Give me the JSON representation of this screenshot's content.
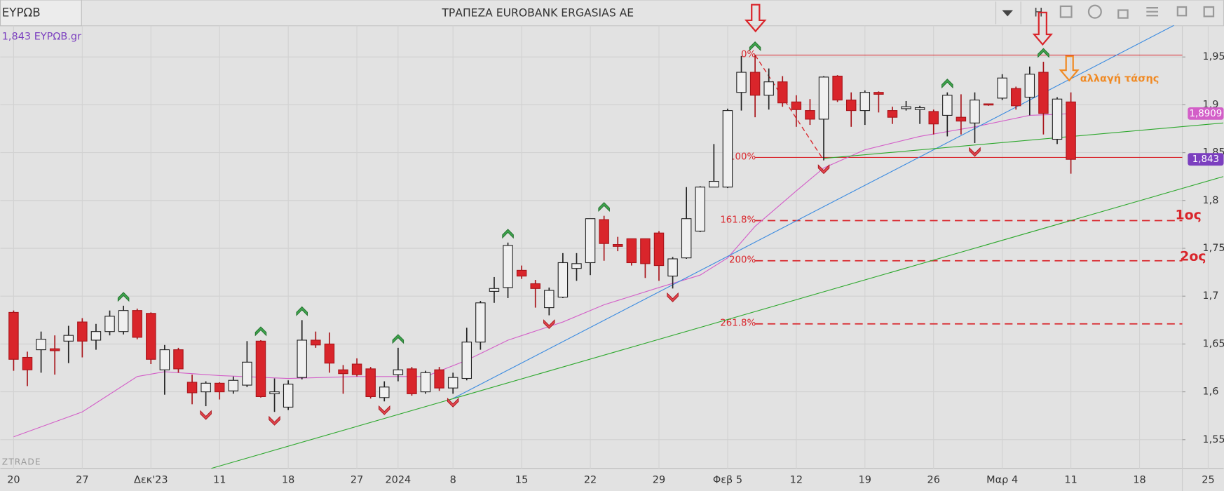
{
  "header": {
    "symbol": "ΕΥΡΩΒ",
    "title": "ΤΡΑΠΕΖΑ EUROBANK ERGASIAS AE",
    "menu": "H"
  },
  "chart_data": {
    "type": "candlestick",
    "legend": "1,843 ΕΥΡΩΒ.gr",
    "watermark": "ZTRADE",
    "grid": true,
    "up_color": "#f0f0f0",
    "down_color": "#d9252b",
    "categories": [
      "20",
      null,
      null,
      null,
      null,
      "27",
      null,
      null,
      null,
      null,
      "Δεκ'23",
      null,
      null,
      null,
      null,
      "11",
      null,
      null,
      null,
      null,
      "18",
      null,
      null,
      null,
      null,
      "27",
      null,
      null,
      "2024",
      null,
      null,
      null,
      "8",
      null,
      null,
      null,
      null,
      "15",
      null,
      null,
      null,
      null,
      "22",
      null,
      null,
      null,
      null,
      "29",
      null,
      null,
      null,
      null,
      "Φεβ 5",
      null,
      null,
      null,
      null,
      "12",
      null,
      null,
      null,
      null,
      "19",
      null,
      null,
      null,
      null,
      "26",
      null,
      null,
      null,
      null,
      "Μαρ 4",
      null,
      null,
      null,
      null,
      "11",
      null,
      null,
      null,
      null,
      "18",
      null,
      null,
      null,
      null,
      "25"
    ],
    "open": [
      1.683,
      1.636,
      1.644,
      1.645,
      1.653,
      1.673,
      1.654,
      1.663,
      1.663,
      1.685,
      1.682,
      1.623,
      1.644,
      1.61,
      1.6,
      1.609,
      1.601,
      1.607,
      1.653,
      1.598,
      1.584,
      1.615,
      1.654,
      1.65,
      1.623,
      1.629,
      1.624,
      1.594,
      1.618,
      1.624,
      1.6,
      1.623,
      1.604,
      1.614,
      1.652,
      1.705,
      1.709,
      1.727,
      1.713,
      1.688,
      1.699,
      1.729,
      1.735,
      1.78,
      1.754,
      1.76,
      1.76,
      1.766,
      1.721,
      1.74,
      1.768,
      1.814,
      1.814,
      1.913,
      1.934,
      1.91,
      1.924,
      1.903,
      1.894,
      1.885,
      1.93,
      1.905,
      1.894,
      1.913,
      1.894,
      1.896,
      1.895,
      1.893,
      1.889,
      1.887,
      1.881,
      1.901,
      1.907,
      1.917,
      1.908,
      1.934,
      1.864,
      1.903,
      null,
      null,
      null,
      null,
      null,
      null,
      null,
      null,
      null,
      null
    ],
    "high": [
      1.685,
      1.642,
      1.663,
      1.659,
      1.669,
      1.677,
      1.671,
      1.685,
      1.69,
      1.687,
      1.683,
      1.649,
      1.646,
      1.618,
      1.611,
      1.61,
      1.616,
      1.653,
      1.654,
      1.614,
      1.612,
      1.675,
      1.663,
      1.662,
      1.628,
      1.635,
      1.626,
      1.611,
      1.646,
      1.626,
      1.622,
      1.626,
      1.62,
      1.667,
      1.695,
      1.72,
      1.756,
      1.732,
      1.717,
      1.709,
      1.745,
      1.745,
      1.781,
      1.784,
      1.762,
      1.76,
      1.76,
      1.768,
      1.741,
      1.814,
      1.815,
      1.859,
      1.896,
      1.951,
      1.952,
      1.938,
      1.93,
      1.91,
      1.906,
      1.93,
      1.931,
      1.913,
      1.915,
      1.914,
      1.898,
      1.904,
      1.899,
      1.895,
      1.913,
      1.911,
      1.913,
      1.901,
      1.932,
      1.919,
      1.94,
      1.945,
      1.908,
      1.913,
      null,
      null,
      null,
      null,
      null,
      null,
      null,
      null,
      null,
      null
    ],
    "low": [
      1.622,
      1.606,
      1.62,
      1.618,
      1.63,
      1.636,
      1.644,
      1.659,
      1.66,
      1.655,
      1.629,
      1.597,
      1.62,
      1.587,
      1.585,
      1.592,
      1.598,
      1.605,
      1.594,
      1.579,
      1.581,
      1.613,
      1.646,
      1.62,
      1.598,
      1.616,
      1.593,
      1.59,
      1.611,
      1.596,
      1.598,
      1.601,
      1.598,
      1.612,
      1.644,
      1.693,
      1.698,
      1.718,
      1.688,
      1.68,
      1.698,
      1.716,
      1.722,
      1.737,
      1.747,
      1.732,
      1.719,
      1.716,
      1.708,
      1.739,
      1.767,
      1.814,
      1.813,
      1.894,
      1.887,
      1.895,
      1.898,
      1.877,
      1.879,
      1.842,
      1.903,
      1.877,
      1.879,
      1.892,
      1.88,
      1.894,
      1.88,
      1.869,
      1.867,
      1.869,
      1.86,
      1.899,
      1.905,
      1.895,
      1.889,
      1.869,
      1.859,
      1.828,
      null,
      null,
      null,
      null,
      null,
      null,
      null,
      null,
      null,
      null
    ],
    "close": [
      1.634,
      1.623,
      1.655,
      1.643,
      1.659,
      1.653,
      1.663,
      1.679,
      1.685,
      1.657,
      1.634,
      1.644,
      1.624,
      1.599,
      1.609,
      1.6,
      1.612,
      1.631,
      1.595,
      1.6,
      1.608,
      1.654,
      1.649,
      1.63,
      1.619,
      1.618,
      1.595,
      1.605,
      1.623,
      1.598,
      1.62,
      1.604,
      1.615,
      1.652,
      1.693,
      1.708,
      1.753,
      1.721,
      1.708,
      1.706,
      1.735,
      1.734,
      1.781,
      1.755,
      1.752,
      1.735,
      1.734,
      1.732,
      1.739,
      1.781,
      1.814,
      1.82,
      1.894,
      1.934,
      1.91,
      1.924,
      1.902,
      1.895,
      1.885,
      1.929,
      1.905,
      1.894,
      1.913,
      1.911,
      1.887,
      1.898,
      1.897,
      1.88,
      1.91,
      1.883,
      1.905,
      1.9,
      1.928,
      1.899,
      1.932,
      1.891,
      1.906,
      1.843,
      null,
      null,
      null,
      null,
      null,
      null,
      null,
      null,
      null,
      null
    ],
    "last_price": {
      "value": 1.843,
      "label": "1,843",
      "color": "#7b3fbf"
    },
    "ylim": [
      1.52,
      1.981
    ],
    "yticks": [
      {
        "value": 1.95,
        "label": "1,95"
      },
      {
        "value": 1.9,
        "label": "1,9"
      },
      {
        "value": 1.85,
        "label": "1,85"
      },
      {
        "value": 1.8,
        "label": "1,8"
      },
      {
        "value": 1.75,
        "label": "1,75"
      },
      {
        "value": 1.7,
        "label": "1,7"
      },
      {
        "value": 1.65,
        "label": "1,65"
      },
      {
        "value": 1.6,
        "label": "1,6"
      },
      {
        "value": 1.55,
        "label": "1,55"
      }
    ],
    "moving_average": {
      "color": "#d35fc8",
      "x": [
        0,
        5,
        9,
        11,
        15,
        20,
        25,
        30,
        33,
        36,
        40,
        43,
        47,
        50,
        52,
        54,
        57,
        59,
        62,
        66,
        70,
        74,
        76,
        77
      ],
      "values": [
        1.553,
        1.579,
        1.616,
        1.621,
        1.617,
        1.614,
        1.616,
        1.616,
        1.633,
        1.654,
        1.673,
        1.691,
        1.709,
        1.722,
        1.74,
        1.773,
        1.81,
        1.834,
        1.853,
        1.867,
        1.877,
        1.889,
        1.89,
        1.8909
      ],
      "last": {
        "value": 1.8909,
        "label": "1,8909"
      }
    },
    "trend_lines": [
      {
        "color": "#3b8be0",
        "x": [
          32,
          84.5
        ],
        "values": [
          1.593,
          1.983
        ]
      },
      {
        "color": "#2ea82e",
        "x": [
          14.4,
          88.1
        ],
        "values": [
          1.52,
          1.825
        ]
      },
      {
        "color": "#2ea82e",
        "x": [
          59,
          88.1
        ],
        "values": [
          1.844,
          1.881
        ]
      }
    ],
    "swing": {
      "color": "#d9252b",
      "x": [
        54,
        59
      ],
      "values": [
        1.952,
        1.842
      ]
    },
    "fibonacci": {
      "color": "#d9252b",
      "start": 54,
      "levels": [
        {
          "label": "0%",
          "value": 1.952,
          "dashed": false
        },
        {
          "label": "100%",
          "value": 1.845,
          "dashed": false
        },
        {
          "label": "161.8%",
          "value": 1.779,
          "dashed": true
        },
        {
          "label": "200%",
          "value": 1.737,
          "dashed": true
        },
        {
          "label": "261.8%",
          "value": 1.671,
          "dashed": true
        }
      ]
    },
    "buy_signals": [
      8,
      18,
      21,
      28,
      36,
      43,
      54,
      68,
      75
    ],
    "sell_signals": [
      14,
      19,
      27,
      32,
      39,
      48,
      59,
      70
    ],
    "annotations": [
      "αλλαγή τάσης",
      "1ος",
      "2ος"
    ]
  }
}
